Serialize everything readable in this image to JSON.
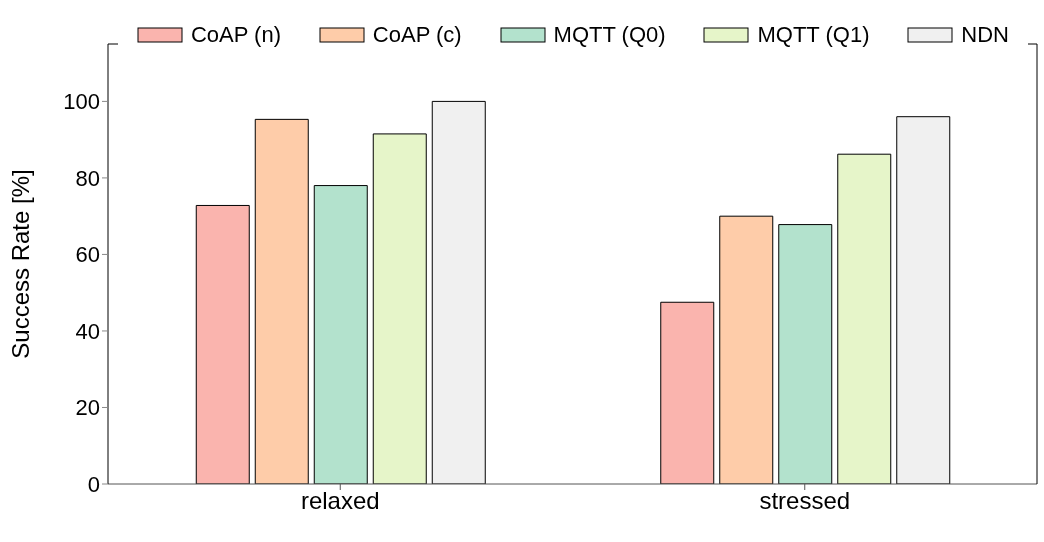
{
  "chart_data": {
    "type": "bar",
    "ylabel": "Success Rate [%]",
    "categories": [
      "relaxed",
      "stressed"
    ],
    "series": [
      {
        "name": "CoAP (n)",
        "color": "#fab4ae",
        "values": [
          72.8,
          47.5
        ]
      },
      {
        "name": "CoAP (c)",
        "color": "#fecca9",
        "values": [
          95.3,
          70
        ]
      },
      {
        "name": "MQTT (Q0)",
        "color": "#b3e2cd",
        "values": [
          78,
          67.8
        ]
      },
      {
        "name": "MQTT (Q1)",
        "color": "#e6f5c9",
        "values": [
          91.5,
          86.2
        ]
      },
      {
        "name": "NDN",
        "color": "#f0f0f0",
        "values": [
          100,
          96
        ]
      }
    ],
    "ylim": [
      0,
      115
    ],
    "yticks": [
      0,
      20,
      40,
      60,
      80,
      100
    ],
    "grid": false,
    "legend": "top"
  }
}
